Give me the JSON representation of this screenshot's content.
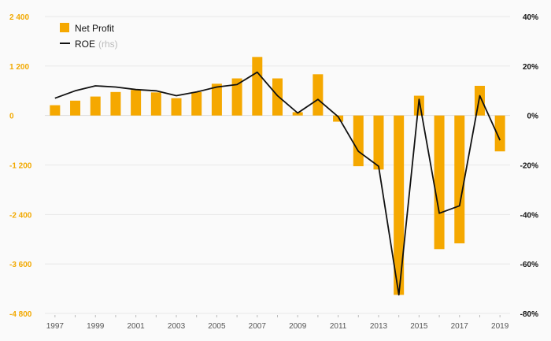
{
  "chart_data": {
    "type": "bar+line",
    "x": [
      1997,
      1998,
      1999,
      2000,
      2001,
      2002,
      2003,
      2004,
      2005,
      2006,
      2007,
      2008,
      2009,
      2010,
      2011,
      2012,
      2013,
      2014,
      2015,
      2016,
      2017,
      2018,
      2019
    ],
    "x_tick_labels": [
      "1997",
      "1999",
      "2001",
      "2003",
      "2005",
      "2007",
      "2009",
      "2011",
      "2013",
      "2015",
      "2017",
      "2019"
    ],
    "series": [
      {
        "name": "Net Profit",
        "kind": "bar",
        "axis": "left",
        "color": "#f5a800",
        "values": [
          250,
          360,
          460,
          570,
          620,
          560,
          420,
          570,
          770,
          900,
          1420,
          900,
          80,
          1000,
          -150,
          -1230,
          -1310,
          -4350,
          480,
          -3240,
          -3100,
          720,
          -870
        ]
      },
      {
        "name": "ROE",
        "name_suffix": "(rhs)",
        "kind": "line",
        "axis": "right",
        "color": "#111111",
        "values": [
          7,
          10,
          12,
          11.5,
          10.5,
          10,
          8,
          9.5,
          11.5,
          12.5,
          17.5,
          8,
          1,
          6.5,
          -0.5,
          -14.5,
          -20.5,
          -72.5,
          6.5,
          -39.5,
          -36.5,
          8,
          -10
        ]
      }
    ],
    "y_left": {
      "min": -4800,
      "max": 2400,
      "ticks": [
        2400,
        1200,
        0,
        -1200,
        -2400,
        -3600,
        -4800
      ],
      "tick_labels": [
        "2 400",
        "1 200",
        "0",
        "-1 200",
        "-2 400",
        "-3 600",
        "-4 800"
      ]
    },
    "y_right": {
      "min": -80,
      "max": 40,
      "ticks": [
        40,
        20,
        0,
        -20,
        -40,
        -60,
        -80
      ],
      "tick_labels": [
        "40%",
        "20%",
        "0%",
        "-20%",
        "-40%",
        "-60%",
        "-80%"
      ]
    },
    "legend_position": "top-left",
    "grid": "horizontal"
  }
}
